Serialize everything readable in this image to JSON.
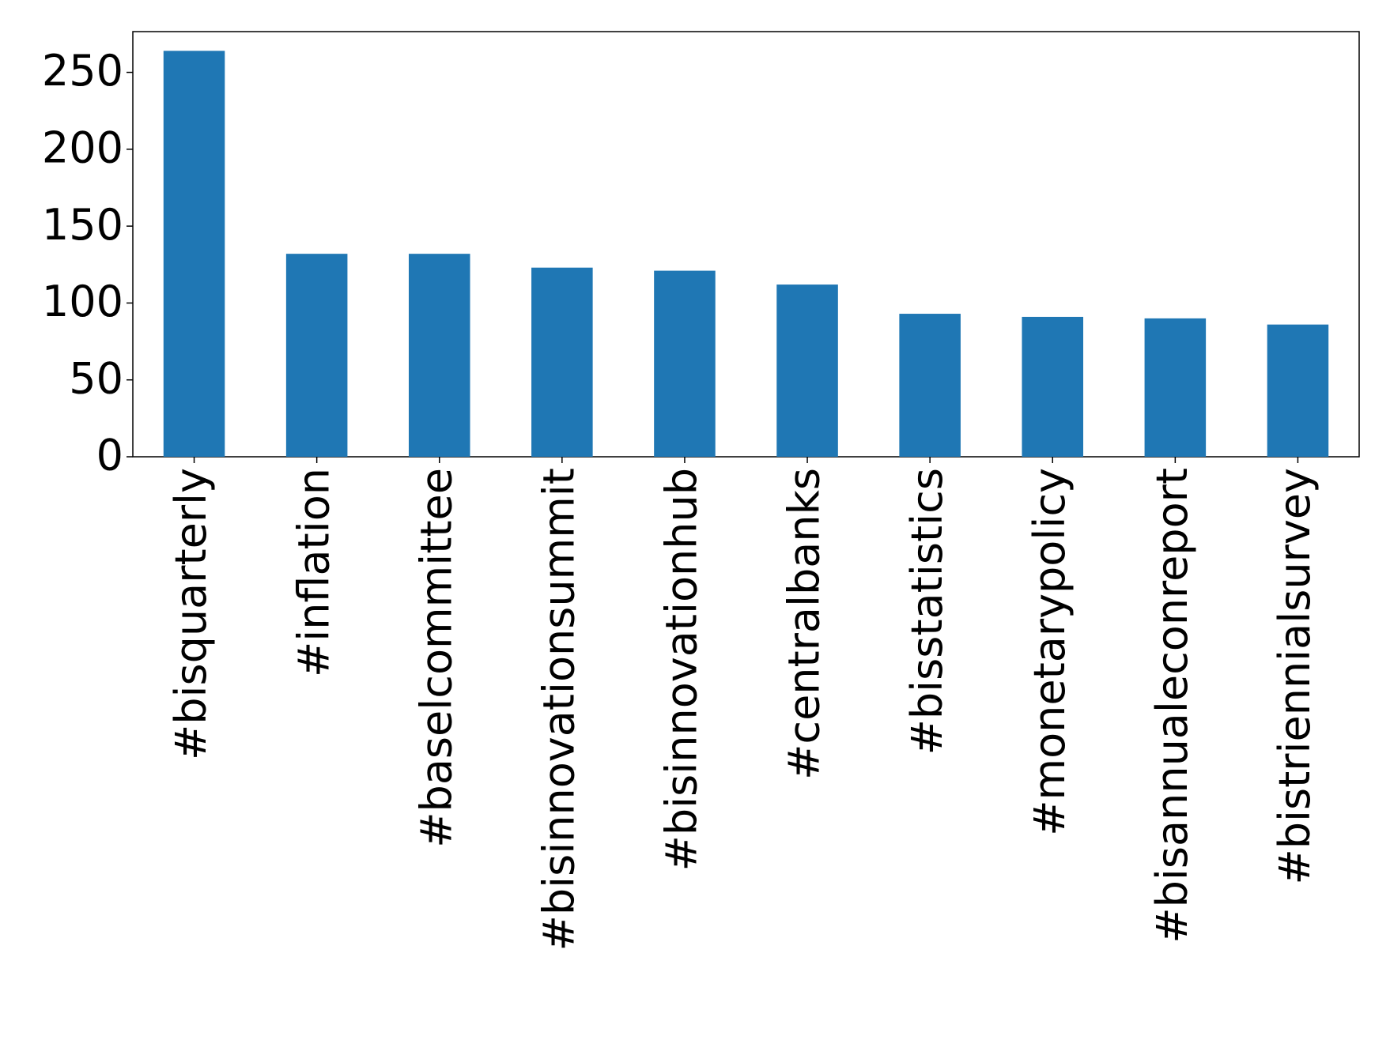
{
  "chart_data": {
    "type": "bar",
    "categories": [
      "#bisquarterly",
      "#inflation",
      "#baselcommittee",
      "#bisinnovationsummit",
      "#bisinnovationhub",
      "#centralbanks",
      "#bisstatistics",
      "#monetarypolicy",
      "#bisannualeconreport",
      "#bistriennialsurvey"
    ],
    "values": [
      264,
      132,
      132,
      123,
      121,
      112,
      93,
      91,
      90,
      86
    ],
    "color": "#1f77b4",
    "ylim": [
      0,
      276.5
    ],
    "yticks": [
      0,
      50,
      100,
      150,
      200,
      250
    ],
    "grid": false
  }
}
